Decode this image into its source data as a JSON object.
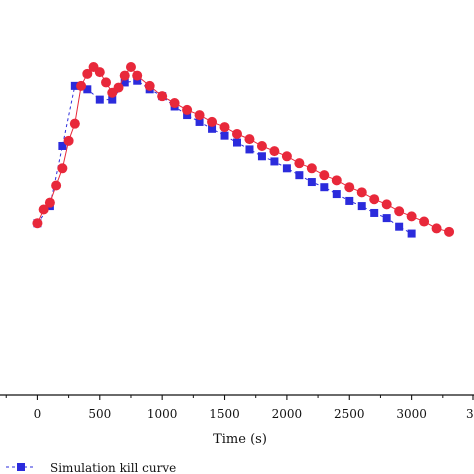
{
  "chart_data": {
    "type": "line",
    "title": "",
    "xlabel": "Time (s)",
    "ylabel": "",
    "xlim": [
      -300,
      3500
    ],
    "ylim": [
      -1.0,
      1.3
    ],
    "grid": false,
    "legend_placement": "bottom-left",
    "x_ticks": [
      0,
      500,
      1000,
      1500,
      2000,
      2500,
      3000
    ],
    "x_tick_labels": [
      "0",
      "500",
      "1000",
      "1500",
      "2000",
      "2500",
      "3000"
    ],
    "x_tick_label_clipped": "3",
    "series": [
      {
        "name": "Simulation kill curve",
        "color": "#2b2bdc",
        "marker": "square",
        "line_style": "dashed",
        "x": [
          0,
          100,
          200,
          300,
          400,
          500,
          600,
          700,
          800,
          900,
          1000,
          1100,
          1200,
          1300,
          1400,
          1500,
          1600,
          1700,
          1800,
          1900,
          2000,
          2100,
          2200,
          2300,
          2400,
          2500,
          2600,
          2700,
          2800,
          2900,
          3000
        ],
        "y": [
          0.0,
          0.1,
          0.45,
          0.8,
          0.78,
          0.72,
          0.72,
          0.82,
          0.83,
          0.78,
          0.74,
          0.68,
          0.63,
          0.59,
          0.55,
          0.51,
          0.47,
          0.43,
          0.39,
          0.36,
          0.32,
          0.28,
          0.24,
          0.21,
          0.17,
          0.13,
          0.1,
          0.06,
          0.03,
          -0.02,
          -0.06
        ]
      },
      {
        "name": "",
        "color": "#e8283a",
        "marker": "circle",
        "line_style": "solid",
        "x": [
          0,
          50,
          100,
          150,
          200,
          250,
          300,
          350,
          400,
          450,
          500,
          550,
          600,
          650,
          700,
          750,
          800,
          900,
          1000,
          1100,
          1200,
          1300,
          1400,
          1500,
          1600,
          1700,
          1800,
          1900,
          2000,
          2100,
          2200,
          2300,
          2400,
          2500,
          2600,
          2700,
          2800,
          2900,
          3000,
          3100,
          3200,
          3300
        ],
        "y": [
          0.0,
          0.08,
          0.12,
          0.22,
          0.32,
          0.48,
          0.58,
          0.8,
          0.87,
          0.91,
          0.88,
          0.82,
          0.76,
          0.79,
          0.86,
          0.91,
          0.86,
          0.8,
          0.74,
          0.7,
          0.66,
          0.63,
          0.59,
          0.56,
          0.52,
          0.49,
          0.45,
          0.42,
          0.39,
          0.35,
          0.32,
          0.28,
          0.25,
          0.21,
          0.18,
          0.14,
          0.11,
          0.07,
          0.04,
          0.01,
          -0.03,
          -0.05
        ]
      }
    ]
  }
}
